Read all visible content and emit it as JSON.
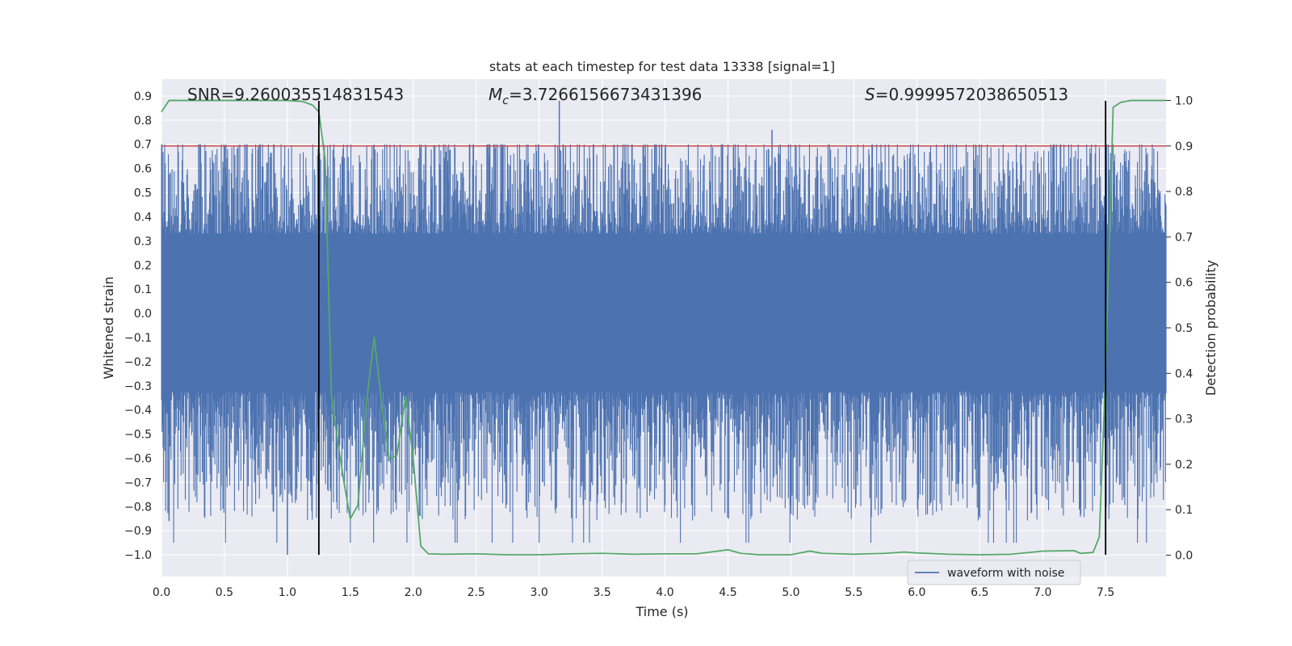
{
  "chart_data": {
    "type": "line",
    "title": "stats at each timestep for test data 13338 [signal=1]",
    "xlabel": "Time (s)",
    "ylabel_left": "Whitened strain",
    "ylabel_right": "Detection probability",
    "xlim": [
      0,
      7.98
    ],
    "ylim_left": [
      -1.09,
      0.97
    ],
    "ylim_right": [
      -0.047,
      1.047
    ],
    "x_ticks": [
      "0.0",
      "0.5",
      "1.0",
      "1.5",
      "2.0",
      "2.5",
      "3.0",
      "3.5",
      "4.0",
      "4.5",
      "5.0",
      "5.5",
      "6.0",
      "6.5",
      "7.0",
      "7.5"
    ],
    "y_ticks_left": [
      "0.9",
      "0.8",
      "0.7",
      "0.6",
      "0.5",
      "0.4",
      "0.3",
      "0.2",
      "0.1",
      "0.0",
      "−0.1",
      "−0.2",
      "−0.3",
      "−0.4",
      "−0.5",
      "−0.6",
      "−0.7",
      "−0.8",
      "−0.9",
      "−1.0"
    ],
    "y_ticks_right": [
      "1.0",
      "0.9",
      "0.8",
      "0.7",
      "0.6",
      "0.5",
      "0.4",
      "0.3",
      "0.2",
      "0.1",
      "0.0"
    ],
    "annotations": {
      "snr": "SNR=9.260035514831543",
      "mc_symbol": "M",
      "mc_sub": "c",
      "mc_value": "=3.7266156673431396",
      "s_symbol": "S",
      "s_value": "=0.9999572038650513"
    },
    "threshold_line": {
      "y_prob": 0.9,
      "color": "#c44e52"
    },
    "vertical_lines": [
      1.25,
      7.5
    ],
    "legend": {
      "label": "waveform with noise",
      "location": "lower-right"
    },
    "series": [
      {
        "name": "waveform with noise",
        "axis": "left",
        "color": "#4c72b0",
        "kind": "noise",
        "band": [
          -0.5,
          0.6
        ],
        "typical_peak": [
          0.7,
          -0.8
        ],
        "max": 0.88,
        "min": -1.0
      },
      {
        "name": "detection probability",
        "axis": "right",
        "color": "#55a868",
        "x": [
          0.0,
          0.06,
          0.25,
          0.5,
          0.75,
          1.0,
          1.12,
          1.2,
          1.25,
          1.3,
          1.35,
          1.4,
          1.45,
          1.5,
          1.56,
          1.63,
          1.69,
          1.75,
          1.81,
          1.87,
          1.94,
          2.0,
          2.06,
          2.12,
          2.25,
          2.5,
          2.75,
          3.0,
          3.25,
          3.5,
          3.75,
          4.0,
          4.25,
          4.45,
          4.5,
          4.55,
          4.6,
          4.75,
          5.0,
          5.15,
          5.25,
          5.5,
          5.75,
          5.9,
          6.0,
          6.25,
          6.5,
          6.75,
          7.0,
          7.25,
          7.3,
          7.4,
          7.45,
          7.5,
          7.56,
          7.62,
          7.7,
          7.98
        ],
        "y": [
          0.975,
          1.0,
          1.0,
          1.0,
          1.0,
          1.0,
          0.998,
          0.99,
          0.975,
          0.87,
          0.35,
          0.25,
          0.16,
          0.08,
          0.11,
          0.34,
          0.48,
          0.33,
          0.21,
          0.22,
          0.35,
          0.21,
          0.02,
          0.003,
          0.002,
          0.003,
          0.001,
          0.001,
          0.003,
          0.004,
          0.002,
          0.003,
          0.003,
          0.01,
          0.012,
          0.008,
          0.004,
          0.001,
          0.001,
          0.009,
          0.004,
          0.002,
          0.004,
          0.007,
          0.005,
          0.002,
          0.001,
          0.002,
          0.009,
          0.01,
          0.004,
          0.006,
          0.04,
          0.4,
          0.985,
          0.996,
          1.0,
          1.0
        ]
      }
    ]
  }
}
